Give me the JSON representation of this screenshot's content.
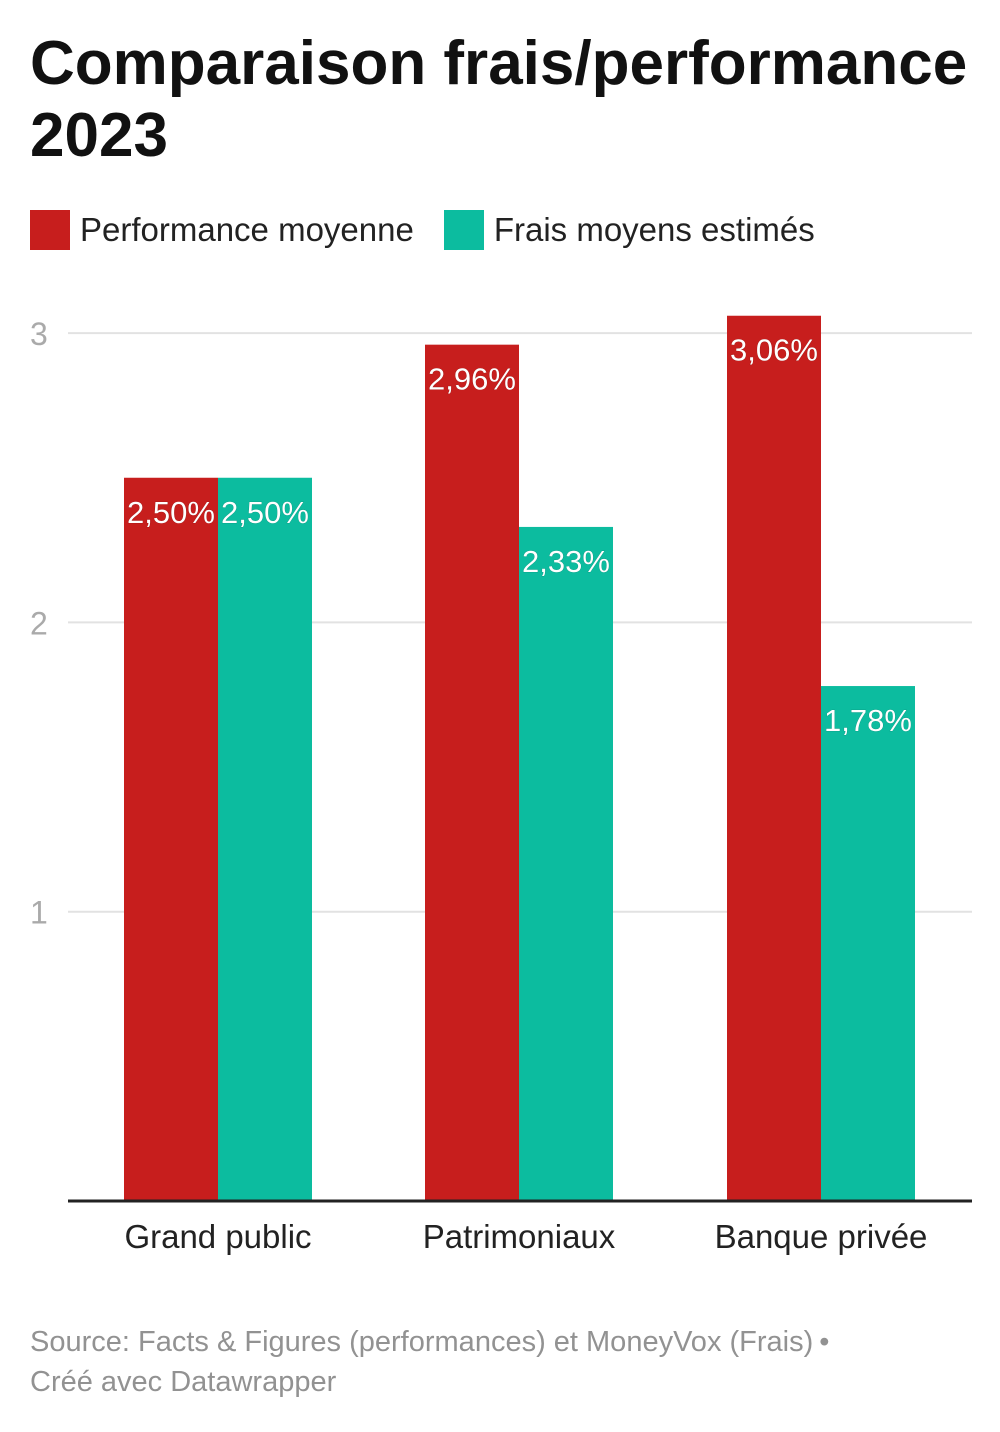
{
  "title": "Comparaison frais/performance 2023",
  "source": {
    "text": "Source: Facts & Figures (performances) et MoneyVox (Frais)",
    "separator": "•",
    "credit": "Créé avec Datawrapper"
  },
  "colors": {
    "performance": "#c71e1d",
    "frais": "#0cbc9f",
    "grid": "#e2e2e2",
    "axis": "#222222",
    "tick": "#aaaaaa"
  },
  "chart_data": {
    "type": "bar",
    "categories": [
      "Grand public",
      "Patrimoniaux",
      "Banque privée"
    ],
    "series": [
      {
        "name": "Performance moyenne",
        "values": [
          2.5,
          2.96,
          3.06
        ],
        "labels": [
          "2,50%",
          "2,96%",
          "3,06%"
        ]
      },
      {
        "name": "Frais moyens estimés",
        "values": [
          2.5,
          2.33,
          1.78
        ],
        "labels": [
          "2,50%",
          "2,33%",
          "1,78%"
        ]
      }
    ],
    "yticks": [
      1,
      2,
      3
    ],
    "ylim": [
      0,
      3.06
    ],
    "grid": true,
    "legend": "top-left"
  }
}
